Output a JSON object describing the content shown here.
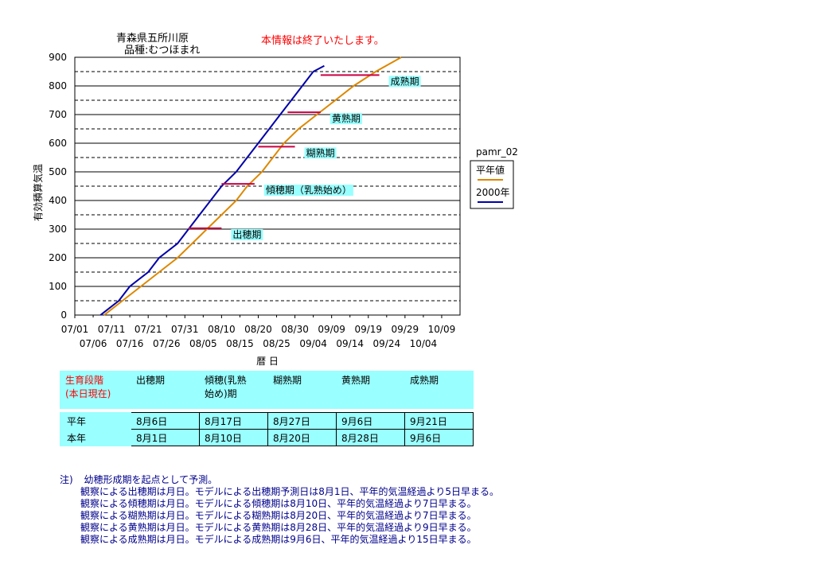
{
  "header": {
    "title_line1": "青森県五所川原",
    "title_line2": "品種:むつほまれ",
    "notice": "本情報は終了いたします。"
  },
  "chart_data": {
    "type": "line",
    "ylabel": "有効積算気温",
    "xlabel": "暦 日",
    "ylim": [
      0,
      900
    ],
    "yticks": [
      0,
      100,
      200,
      300,
      400,
      500,
      600,
      700,
      800,
      900
    ],
    "xlim": [
      "07/01",
      "10/14"
    ],
    "xticks_top": [
      "07/01",
      "07/11",
      "07/21",
      "07/31",
      "08/10",
      "08/20",
      "08/30",
      "09/09",
      "09/19",
      "09/29",
      "10/09"
    ],
    "xticks_bottom": [
      "07/06",
      "07/16",
      "07/26",
      "08/05",
      "08/15",
      "08/25",
      "09/04",
      "09/14",
      "09/24",
      "10/04"
    ],
    "grid": "horizontal dashed every 50",
    "legend_title": "pamr_02",
    "legend_position": "right",
    "series": [
      {
        "name": "平年値",
        "color": "#dd8800",
        "points": [
          [
            "07/09",
            0
          ],
          [
            "07/14",
            50
          ],
          [
            "07/19",
            100
          ],
          [
            "07/24",
            150
          ],
          [
            "07/29",
            200
          ],
          [
            "08/02",
            250
          ],
          [
            "08/06",
            300
          ],
          [
            "08/10",
            350
          ],
          [
            "08/14",
            400
          ],
          [
            "08/17",
            450
          ],
          [
            "08/21",
            500
          ],
          [
            "08/24",
            550
          ],
          [
            "08/27",
            600
          ],
          [
            "08/31",
            650
          ],
          [
            "09/05",
            700
          ],
          [
            "09/10",
            750
          ],
          [
            "09/15",
            800
          ],
          [
            "09/21",
            850
          ],
          [
            "09/28",
            900
          ]
        ]
      },
      {
        "name": "2000年",
        "color": "#0000aa",
        "points": [
          [
            "07/08",
            0
          ],
          [
            "07/13",
            50
          ],
          [
            "07/16",
            100
          ],
          [
            "07/21",
            150
          ],
          [
            "07/24",
            200
          ],
          [
            "07/29",
            250
          ],
          [
            "08/01",
            300
          ],
          [
            "08/04",
            350
          ],
          [
            "08/07",
            400
          ],
          [
            "08/10",
            450
          ],
          [
            "08/14",
            500
          ],
          [
            "08/17",
            550
          ],
          [
            "08/20",
            600
          ],
          [
            "08/23",
            650
          ],
          [
            "08/26",
            700
          ],
          [
            "08/29",
            750
          ],
          [
            "09/01",
            800
          ],
          [
            "09/04",
            850
          ],
          [
            "09/07",
            870
          ]
        ]
      }
    ],
    "thresholds": [
      {
        "label": "出穂期",
        "y": 303,
        "from": "08/01",
        "to": "08/10"
      },
      {
        "label": "傾穂期（乳熟始め）",
        "y": 458,
        "from": "08/10",
        "to": "08/19"
      },
      {
        "label": "糊熟期",
        "y": 588,
        "from": "08/20",
        "to": "08/30"
      },
      {
        "label": "黄熟期",
        "y": 708,
        "from": "08/28",
        "to": "09/06"
      },
      {
        "label": "成熟期",
        "y": 838,
        "from": "09/06",
        "to": "09/22"
      }
    ],
    "threshold_color": "#cc0044"
  },
  "table": {
    "header_first": [
      "生育段階",
      "(本日現在)"
    ],
    "headers": [
      "出穂期",
      "傾穂(乳熟\n始め)期",
      "糊熟期",
      "黄熟期",
      "成熟期"
    ],
    "rows": [
      {
        "label": "平年",
        "values": [
          "8月6日",
          "8月17日",
          "8月27日",
          "9月6日",
          "9月21日"
        ]
      },
      {
        "label": "本年",
        "values": [
          "8月1日",
          "8月10日",
          "8月20日",
          "8月28日",
          "9月6日"
        ]
      }
    ]
  },
  "notes": {
    "prefix": "注)",
    "lead": "幼穂形成期を起点として予測。",
    "lines": [
      "観察による出穂期は月日。モデルによる出穂期予測日は8月1日、平年的気温経過より5日早まる。",
      "観察による傾穂期は月日。モデルによる傾穂期は8月10日、平年的気温経過より7日早まる。",
      "観察による糊熟期は月日。モデルによる糊熟期は8月20日、平年的気温経過より7日早まる。",
      "観察による黄熟期は月日。モデルによる黄熟期は8月28日、平年的気温経過より9日早まる。",
      "観察による成熟期は月日。モデルによる成熟期は9月6日、平年的気温経過より15日早まる。"
    ]
  }
}
